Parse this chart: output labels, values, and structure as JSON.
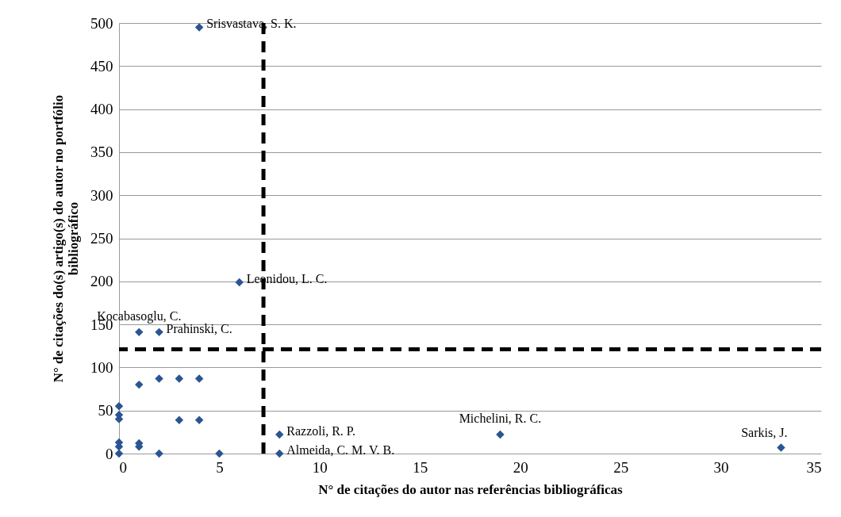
{
  "chart_data": {
    "type": "scatter",
    "xlabel": "N° de citações do autor nas referências bibliográficas",
    "ylabel": "N° de citações do(s) artigo(s) do autor no portfólio bibliográfico",
    "x": [
      4,
      6,
      1,
      2,
      1,
      2,
      3,
      4,
      0,
      0,
      0,
      3,
      4,
      8,
      8,
      0,
      0,
      0,
      1,
      1,
      2,
      5,
      19,
      33
    ],
    "series": [
      {
        "color": "#2b5592",
        "values": [
          495,
          199,
          141,
          141,
          80,
          87,
          87,
          87,
          55,
          45,
          40,
          39,
          39,
          22,
          0,
          13,
          8,
          0,
          12,
          8,
          0,
          0,
          22,
          7
        ]
      }
    ],
    "xlim": [
      0,
      35
    ],
    "xticks": [
      0,
      5,
      10,
      15,
      20,
      25,
      30,
      35
    ],
    "ylim": [
      0,
      500
    ],
    "yticks": [
      0,
      50,
      100,
      150,
      200,
      250,
      300,
      350,
      400,
      450,
      500
    ],
    "grid": "y",
    "marker": "diamond",
    "ref_lines": [
      {
        "axis": "x",
        "value": 7.2,
        "color": "#000000",
        "line_style": "dashed"
      },
      {
        "axis": "y",
        "value": 121,
        "color": "#000000",
        "line_style": "dashed"
      }
    ],
    "annotations": [
      {
        "text": "Srisvastava, S. K.",
        "x": 4,
        "y": 495
      },
      {
        "text": "Leonidou, L. C.",
        "x": 6,
        "y": 199
      },
      {
        "text": "Kocabasoglu, C.",
        "x": 1,
        "y": 141
      },
      {
        "text": "Prahinski, C.",
        "x": 2,
        "y": 141
      },
      {
        "text": "Razzoli, R. P.",
        "x": 8,
        "y": 22
      },
      {
        "text": "Almeida, C. M. V. B.",
        "x": 8,
        "y": 0
      },
      {
        "text": "Michelini, R. C.",
        "x": 19,
        "y": 22
      },
      {
        "text": "Sarkis, J.",
        "x": 33,
        "y": 7
      }
    ]
  }
}
